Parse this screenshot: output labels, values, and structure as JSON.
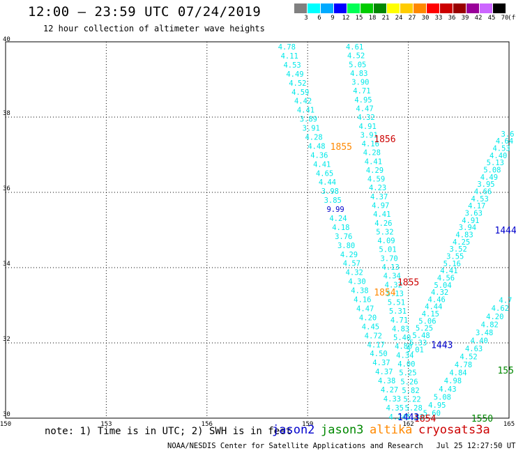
{
  "header": {
    "title": "12:00 – 23:59 UTC 07/24/2019",
    "subtitle": "12 hour collection of altimeter wave heights"
  },
  "color_scale": {
    "unit": "(ft)",
    "bins": [
      {
        "label": "3",
        "color": "#808080"
      },
      {
        "label": "6",
        "color": "#00ffff"
      },
      {
        "label": "9",
        "color": "#00aaff"
      },
      {
        "label": "12",
        "color": "#0000ff"
      },
      {
        "label": "15",
        "color": "#00ff55"
      },
      {
        "label": "18",
        "color": "#00cc00"
      },
      {
        "label": "21",
        "color": "#008800"
      },
      {
        "label": "24",
        "color": "#ffff00"
      },
      {
        "label": "27",
        "color": "#ffcc00"
      },
      {
        "label": "30",
        "color": "#ff8800"
      },
      {
        "label": "33",
        "color": "#ff0000"
      },
      {
        "label": "36",
        "color": "#cc0000"
      },
      {
        "label": "39",
        "color": "#990000"
      },
      {
        "label": "42",
        "color": "#990099"
      },
      {
        "label": "45",
        "color": "#cc66ff"
      },
      {
        "label": "70",
        "color": "#000000"
      }
    ]
  },
  "axes": {
    "lat_labels": [
      "40",
      "38",
      "36",
      "34",
      "32",
      "30"
    ],
    "lon_labels": [
      "150",
      "153",
      "156",
      "159",
      "162",
      "165"
    ],
    "grid": "dotted"
  },
  "notes": "note: 1) Time is in UTC; 2) SWH is in feet",
  "legend": [
    {
      "name": "jason2",
      "color": "#0000cc"
    },
    {
      "name": "jason3",
      "color": "#008800"
    },
    {
      "name": "altika",
      "color": "#ff8800"
    },
    {
      "name": "cryosat",
      "color": "#cc0000"
    },
    {
      "name": "s3a",
      "color": "#cc0000"
    }
  ],
  "footer": {
    "credit": "NOAA/NESDIS Center for Satellite Applications and Research",
    "timestamp": "Jul 25 12:27:50 UTC 2019"
  },
  "time_labels": [
    {
      "text": "1855",
      "color": "#ff8800",
      "lon": 160.0,
      "lat": 37.22
    },
    {
      "text": "1856",
      "color": "#cc0000",
      "lon": 161.3,
      "lat": 37.43
    },
    {
      "text": "1855",
      "color": "#cc0000",
      "lon": 162.0,
      "lat": 33.62
    },
    {
      "text": "1854",
      "color": "#ff8800",
      "lon": 161.3,
      "lat": 33.35
    },
    {
      "text": "1444",
      "color": "#0000cc",
      "lon": 164.9,
      "lat": 35.0
    },
    {
      "text": "1443",
      "color": "#0000cc",
      "lon": 163.0,
      "lat": 31.95
    },
    {
      "text": "1854",
      "color": "#cc0000",
      "lon": 162.5,
      "lat": 30.0
    },
    {
      "text": "1443",
      "color": "#0000cc",
      "lon": 162.0,
      "lat": 30.04
    },
    {
      "text": "1550",
      "color": "#008800",
      "lon": 164.2,
      "lat": 30.0
    },
    {
      "text": "155",
      "color": "#008800",
      "lon": 164.9,
      "lat": 31.28
    }
  ],
  "tracks": [
    {
      "start": [
        158.38,
        39.87
      ],
      "end": [
        161.68,
        30.04
      ],
      "values": [
        "4.78",
        "4.11",
        "4.53",
        "4.49",
        "4.52",
        "4.59",
        "4.42",
        "4.41",
        "3.89",
        "3.91",
        "4.28",
        "4.48",
        "4.36",
        "4.41",
        "4.65",
        "4.44",
        "3.98",
        "3.85",
        "9.99",
        "4.24",
        "4.18",
        "3.76",
        "3.80",
        "4.29",
        "4.57",
        "4.32",
        "4.30",
        "4.38",
        "4.16",
        "4.47",
        "4.20",
        "4.45",
        "4.72",
        "4.17",
        "4.50",
        "4.37",
        "4.37",
        "4.38",
        "4.27",
        "4.33",
        "4.35",
        "4.24"
      ]
    },
    {
      "start": [
        160.4,
        39.87
      ],
      "end": [
        162.2,
        30.04
      ],
      "values": [
        "4.61",
        "4.52",
        "5.05",
        "4.83",
        "3.90",
        "4.71",
        "4.95",
        "4.47",
        "4.32",
        "4.91",
        "3.91",
        "4.16",
        "4.28",
        "4.41",
        "4.29",
        "4.59",
        "4.23",
        "4.37",
        "4.97",
        "4.41",
        "4.26",
        "5.32",
        "4.09",
        "5.01",
        "3.70",
        "4.13",
        "4.34",
        "4.32",
        "5.13",
        "5.51",
        "5.31",
        "4.71",
        "4.83",
        "5.40",
        "4.80",
        "4.34",
        "4.00",
        "5.25",
        "5.26",
        "5.82",
        "5.22",
        "5.28",
        "5.33"
      ]
    },
    {
      "start": [
        162.2,
        31.82
      ],
      "end": [
        165.05,
        37.75
      ],
      "values": [
        "5.01",
        "5.33",
        "5.48",
        "5.25",
        "5.06",
        "4.15",
        "4.44",
        "4.46",
        "4.32",
        "5.04",
        "4.56",
        "4.41",
        "5.16",
        "3.55",
        "3.52",
        "4.25",
        "4.83",
        "3.94",
        "4.91",
        "3.63",
        "4.17",
        "4.53",
        "4.66",
        "3.95",
        "4.49",
        "5.08",
        "5.13",
        "4.40",
        "4.53",
        "4.64",
        "3.6",
        "4."
      ]
    },
    {
      "start": [
        162.7,
        30.14
      ],
      "end": [
        165.05,
        33.35
      ],
      "values": [
        "5.60",
        "4.95",
        "5.08",
        "4.43",
        "4.98",
        "4.84",
        "4.78",
        "4.52",
        "4.63",
        "4.40",
        "3.48",
        "4.82",
        "4.20",
        "4.62",
        "4.7",
        "4."
      ]
    }
  ]
}
